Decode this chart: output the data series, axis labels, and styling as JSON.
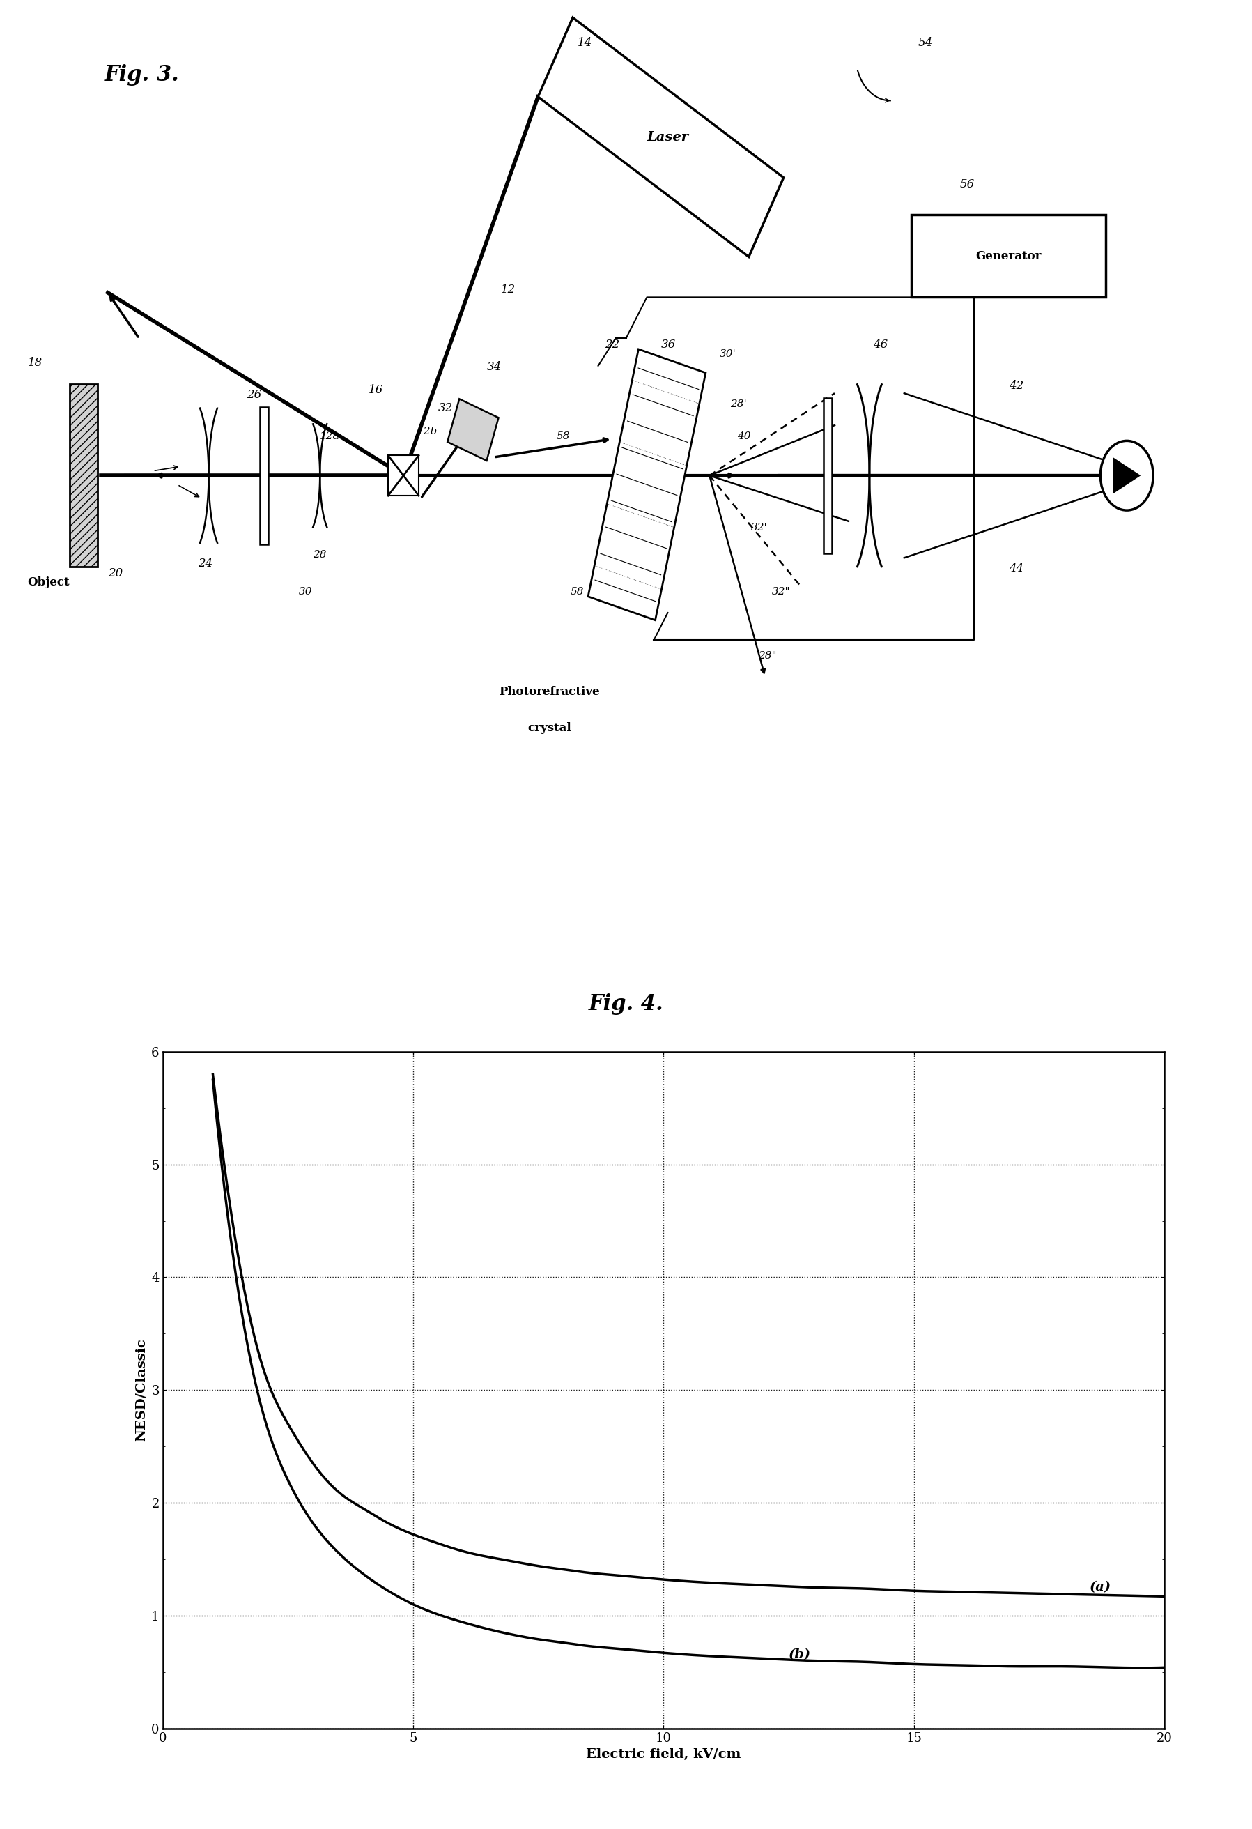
{
  "fig3_title": "Fig. 3.",
  "fig4_title": "Fig. 4.",
  "fig4_xlabel": "Electric field, kV/cm",
  "fig4_ylabel": "NESD/Classic",
  "fig4_xlim": [
    0,
    20
  ],
  "fig4_ylim": [
    0,
    6
  ],
  "fig4_xticks": [
    0,
    5,
    10,
    15,
    20
  ],
  "fig4_yticks": [
    0,
    1,
    2,
    3,
    4,
    5,
    6
  ],
  "curve_a_label": "(a)",
  "curve_b_label": "(b)",
  "bg_color": "#ffffff",
  "line_color": "#000000",
  "curve_a_x": [
    1.0,
    1.5,
    2.0,
    2.5,
    3.0,
    3.5,
    4.0,
    4.5,
    5.0,
    5.5,
    6.0,
    6.5,
    7.0,
    7.5,
    8.0,
    8.5,
    9.0,
    9.5,
    10.0,
    11.0,
    12.0,
    13.0,
    14.0,
    15.0,
    16.0,
    17.0,
    18.0,
    19.0,
    20.0
  ],
  "curve_a_y": [
    5.8,
    4.2,
    3.2,
    2.7,
    2.35,
    2.1,
    1.95,
    1.82,
    1.72,
    1.64,
    1.57,
    1.52,
    1.48,
    1.44,
    1.41,
    1.38,
    1.36,
    1.34,
    1.32,
    1.29,
    1.27,
    1.25,
    1.24,
    1.22,
    1.21,
    1.2,
    1.19,
    1.18,
    1.17
  ],
  "curve_b_x": [
    1.0,
    1.5,
    2.0,
    2.5,
    3.0,
    3.5,
    4.0,
    4.5,
    5.0,
    5.5,
    6.0,
    6.5,
    7.0,
    7.5,
    8.0,
    8.5,
    9.0,
    9.5,
    10.0,
    11.0,
    12.0,
    13.0,
    14.0,
    15.0,
    16.0,
    17.0,
    18.0,
    19.0,
    20.0
  ],
  "curve_b_y": [
    5.75,
    3.9,
    2.8,
    2.2,
    1.82,
    1.56,
    1.37,
    1.22,
    1.1,
    1.01,
    0.94,
    0.88,
    0.83,
    0.79,
    0.76,
    0.73,
    0.71,
    0.69,
    0.67,
    0.64,
    0.62,
    0.6,
    0.59,
    0.57,
    0.56,
    0.55,
    0.55,
    0.54,
    0.54
  ]
}
